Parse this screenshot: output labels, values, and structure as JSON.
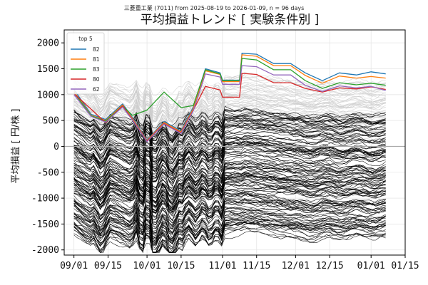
{
  "chart_data": {
    "type": "line",
    "subtitle": "三菱重工業 (7011) from 2025-08-19 to 2026-01-09, n = 96 days",
    "title": "平均損益トレンド [ 実験条件別 ]",
    "xlabel": "",
    "ylabel": "平均損益 [ 円/株 ]",
    "x_start": "2025-09-01",
    "x_end": "2026-01-07",
    "xlim": [
      "2025-08-28",
      "2026-01-15"
    ],
    "ylim": [
      -2100,
      2250
    ],
    "yticks": [
      -2000,
      -1500,
      -1000,
      -500,
      0,
      500,
      1000,
      1500,
      2000
    ],
    "xticks": [
      {
        "date": "2025-09-01",
        "label": "09/01"
      },
      {
        "date": "2025-09-15",
        "label": "09/15"
      },
      {
        "date": "2025-10-01",
        "label": "10/01"
      },
      {
        "date": "2025-10-15",
        "label": "10/15"
      },
      {
        "date": "2025-11-01",
        "label": "11/01"
      },
      {
        "date": "2025-11-15",
        "label": "11/15"
      },
      {
        "date": "2025-12-01",
        "label": "12/01"
      },
      {
        "date": "2025-12-15",
        "label": "12/15"
      },
      {
        "date": "2026-01-01",
        "label": "01/01"
      },
      {
        "date": "2026-01-15",
        "label": "01/15"
      }
    ],
    "grid": true,
    "zero_line": true,
    "legend": {
      "title": "top 5",
      "position": "top-left"
    },
    "series": [
      {
        "name": "82",
        "color": "#1f77b4",
        "values": [
          [
            "2025-09-01",
            1100
          ],
          [
            "2025-09-08",
            620
          ],
          [
            "2025-09-14",
            520
          ],
          [
            "2025-09-21",
            820
          ],
          [
            "2025-09-25",
            560
          ],
          [
            "2025-10-01",
            120
          ],
          [
            "2025-10-08",
            480
          ],
          [
            "2025-10-15",
            300
          ],
          [
            "2025-10-20",
            760
          ],
          [
            "2025-10-25",
            1500
          ],
          [
            "2025-10-31",
            1420
          ],
          [
            "2025-11-01",
            1280
          ],
          [
            "2025-11-08",
            1280
          ],
          [
            "2025-11-09",
            1800
          ],
          [
            "2025-11-15",
            1780
          ],
          [
            "2025-11-22",
            1600
          ],
          [
            "2025-11-29",
            1600
          ],
          [
            "2025-12-05",
            1420
          ],
          [
            "2025-12-12",
            1270
          ],
          [
            "2025-12-19",
            1420
          ],
          [
            "2025-12-26",
            1380
          ],
          [
            "2026-01-01",
            1440
          ],
          [
            "2026-01-07",
            1400
          ]
        ]
      },
      {
        "name": "81",
        "color": "#ff7f0e",
        "values": [
          [
            "2025-09-01",
            1060
          ],
          [
            "2025-09-08",
            600
          ],
          [
            "2025-09-14",
            500
          ],
          [
            "2025-09-21",
            800
          ],
          [
            "2025-09-25",
            540
          ],
          [
            "2025-10-01",
            110
          ],
          [
            "2025-10-08",
            460
          ],
          [
            "2025-10-15",
            280
          ],
          [
            "2025-10-20",
            730
          ],
          [
            "2025-10-25",
            1460
          ],
          [
            "2025-10-31",
            1390
          ],
          [
            "2025-11-01",
            1250
          ],
          [
            "2025-11-08",
            1250
          ],
          [
            "2025-11-09",
            1770
          ],
          [
            "2025-11-15",
            1740
          ],
          [
            "2025-11-22",
            1560
          ],
          [
            "2025-11-29",
            1560
          ],
          [
            "2025-12-05",
            1370
          ],
          [
            "2025-12-12",
            1220
          ],
          [
            "2025-12-19",
            1360
          ],
          [
            "2025-12-26",
            1320
          ],
          [
            "2026-01-01",
            1350
          ],
          [
            "2026-01-07",
            1320
          ]
        ]
      },
      {
        "name": "83",
        "color": "#2ca02c",
        "values": [
          [
            "2025-09-01",
            1040
          ],
          [
            "2025-09-08",
            590
          ],
          [
            "2025-09-14",
            490
          ],
          [
            "2025-09-21",
            780
          ],
          [
            "2025-09-25",
            600
          ],
          [
            "2025-10-01",
            700
          ],
          [
            "2025-10-08",
            1050
          ],
          [
            "2025-10-15",
            750
          ],
          [
            "2025-10-20",
            790
          ],
          [
            "2025-10-25",
            1480
          ],
          [
            "2025-10-31",
            1400
          ],
          [
            "2025-11-01",
            1270
          ],
          [
            "2025-11-08",
            1270
          ],
          [
            "2025-11-09",
            1700
          ],
          [
            "2025-11-15",
            1670
          ],
          [
            "2025-11-22",
            1480
          ],
          [
            "2025-11-29",
            1480
          ],
          [
            "2025-12-05",
            1270
          ],
          [
            "2025-12-12",
            1120
          ],
          [
            "2025-12-19",
            1230
          ],
          [
            "2025-12-26",
            1190
          ],
          [
            "2026-01-01",
            1220
          ],
          [
            "2026-01-07",
            1180
          ]
        ]
      },
      {
        "name": "80",
        "color": "#d62728",
        "values": [
          [
            "2025-09-01",
            1020
          ],
          [
            "2025-09-08",
            720
          ],
          [
            "2025-09-14",
            460
          ],
          [
            "2025-09-21",
            780
          ],
          [
            "2025-09-25",
            520
          ],
          [
            "2025-10-01",
            100
          ],
          [
            "2025-10-08",
            440
          ],
          [
            "2025-10-15",
            260
          ],
          [
            "2025-10-20",
            700
          ],
          [
            "2025-10-25",
            1160
          ],
          [
            "2025-10-31",
            1090
          ],
          [
            "2025-11-01",
            950
          ],
          [
            "2025-11-08",
            950
          ],
          [
            "2025-11-09",
            1410
          ],
          [
            "2025-11-15",
            1390
          ],
          [
            "2025-11-22",
            1230
          ],
          [
            "2025-11-29",
            1230
          ],
          [
            "2025-12-05",
            1120
          ],
          [
            "2025-12-12",
            1050
          ],
          [
            "2025-12-19",
            1130
          ],
          [
            "2025-12-26",
            1110
          ],
          [
            "2026-01-01",
            1150
          ],
          [
            "2026-01-07",
            1100
          ]
        ]
      },
      {
        "name": "62",
        "color": "#9467bd",
        "values": [
          [
            "2025-09-01",
            1000
          ],
          [
            "2025-09-08",
            580
          ],
          [
            "2025-09-14",
            470
          ],
          [
            "2025-09-21",
            760
          ],
          [
            "2025-09-25",
            510
          ],
          [
            "2025-10-01",
            90
          ],
          [
            "2025-10-08",
            430
          ],
          [
            "2025-10-15",
            250
          ],
          [
            "2025-10-20",
            690
          ],
          [
            "2025-10-25",
            1400
          ],
          [
            "2025-10-31",
            1340
          ],
          [
            "2025-11-01",
            1200
          ],
          [
            "2025-11-08",
            1200
          ],
          [
            "2025-11-09",
            1560
          ],
          [
            "2025-11-15",
            1540
          ],
          [
            "2025-11-22",
            1380
          ],
          [
            "2025-11-29",
            1380
          ],
          [
            "2025-12-05",
            1180
          ],
          [
            "2025-12-12",
            1060
          ],
          [
            "2025-12-19",
            1170
          ],
          [
            "2025-12-26",
            1130
          ],
          [
            "2026-01-01",
            1160
          ],
          [
            "2026-01-07",
            1080
          ]
        ]
      }
    ],
    "background_series": {
      "note_shown": false,
      "gray_count": 60,
      "black_count": 140,
      "gray_color": "#cccccc",
      "black_color": "#000000",
      "gray_range": [
        200,
        1200
      ],
      "black_range": [
        -1800,
        600
      ]
    }
  }
}
